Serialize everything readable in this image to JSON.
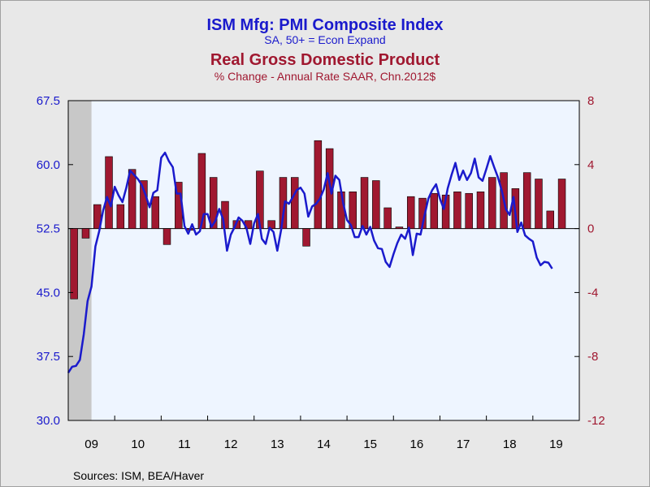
{
  "chart_data": {
    "type": "bar+line",
    "titles": [
      {
        "text": "ISM Mfg: PMI Composite Index",
        "color": "#1a1acc"
      },
      {
        "text": "Real Gross Domestic Product",
        "color": "#a01830"
      }
    ],
    "subtitles": [
      {
        "text": "SA, 50+ = Econ Expand",
        "color": "#1a1acc"
      },
      {
        "text": "% Change - Annual Rate     SAAR, Chn.2012$",
        "color": "#a01830"
      }
    ],
    "source": "Sources:  ISM, BEA/Haver",
    "x_labels": [
      "09",
      "10",
      "11",
      "12",
      "13",
      "14",
      "15",
      "16",
      "17",
      "18",
      "19"
    ],
    "x_range": [
      2009,
      2020
    ],
    "y_left": {
      "ylim": [
        30.0,
        67.5
      ],
      "ticks": [
        "30.0",
        "37.5",
        "45.0",
        "52.5",
        "60.0",
        "67.5"
      ],
      "color": "#1a1acc"
    },
    "y_right": {
      "ylim": [
        -12,
        8
      ],
      "ticks": [
        "-12",
        "-8",
        "-4",
        "0",
        "4",
        "8"
      ],
      "color": "#a01830"
    },
    "recession": [
      2009.0,
      2009.5
    ],
    "bar_color": "#a01830",
    "line_color": "#1a1acc",
    "plot_bg": "#eef5ff",
    "recession_color": "#c8c8c8",
    "series": [
      {
        "name": "Real Gross Domestic Product",
        "axis": "right",
        "type": "bar",
        "x": [
          "2009Q1",
          "2009Q2",
          "2009Q3",
          "2009Q4",
          "2010Q1",
          "2010Q2",
          "2010Q3",
          "2010Q4",
          "2011Q1",
          "2011Q2",
          "2011Q3",
          "2011Q4",
          "2012Q1",
          "2012Q2",
          "2012Q3",
          "2012Q4",
          "2013Q1",
          "2013Q2",
          "2013Q3",
          "2013Q4",
          "2014Q1",
          "2014Q2",
          "2014Q3",
          "2014Q4",
          "2015Q1",
          "2015Q2",
          "2015Q3",
          "2015Q4",
          "2016Q1",
          "2016Q2",
          "2016Q3",
          "2016Q4",
          "2017Q1",
          "2017Q2",
          "2017Q3",
          "2017Q4",
          "2018Q1",
          "2018Q2",
          "2018Q3",
          "2018Q4",
          "2019Q1",
          "2019Q2",
          "2019Q3"
        ],
        "values": [
          -4.4,
          -0.6,
          1.5,
          4.5,
          1.5,
          3.7,
          3.0,
          2.0,
          -1.0,
          2.9,
          -0.1,
          4.7,
          3.2,
          1.7,
          0.5,
          0.5,
          3.6,
          0.5,
          3.2,
          3.2,
          -1.1,
          5.5,
          5.0,
          2.3,
          2.3,
          3.2,
          3.0,
          1.3,
          0.1,
          2.0,
          1.9,
          2.2,
          2.1,
          2.3,
          2.2,
          2.3,
          3.2,
          3.5,
          2.5,
          3.5,
          3.1,
          1.1,
          3.1
        ]
      },
      {
        "name": "ISM Mfg: PMI Composite Index",
        "axis": "left",
        "type": "line",
        "start": "2009-01",
        "values": [
          35.6,
          36.3,
          36.4,
          37.1,
          40.1,
          44.0,
          45.7,
          50.4,
          52.2,
          54.6,
          56.2,
          55.1,
          57.4,
          56.4,
          55.6,
          57.3,
          59.3,
          58.8,
          58.3,
          57.6,
          56.4,
          55.0,
          56.7,
          57.0,
          60.8,
          61.4,
          60.4,
          59.7,
          56.6,
          56.6,
          52.8,
          51.9,
          53.0,
          51.8,
          52.2,
          54.2,
          54.2,
          52.7,
          53.4,
          54.8,
          53.6,
          49.9,
          51.8,
          52.7,
          53.8,
          53.4,
          52.6,
          50.7,
          53.1,
          54.2,
          51.3,
          50.7,
          52.6,
          52.1,
          49.9,
          52.4,
          55.7,
          55.4,
          56.2,
          57.0,
          57.3,
          56.6,
          53.9,
          55.1,
          55.4,
          56.0,
          57.1,
          59.0,
          56.6,
          58.7,
          58.2,
          55.5,
          53.5,
          52.9,
          51.5,
          51.5,
          52.8,
          51.8,
          52.7,
          51.1,
          50.2,
          50.1,
          48.6,
          48.0,
          49.5,
          50.8,
          51.8,
          51.3,
          52.6,
          49.4,
          51.9,
          51.8,
          54.0,
          56.0,
          57.0,
          57.7,
          56.0,
          54.8,
          57.2,
          58.8,
          60.2,
          58.2,
          59.3,
          58.2,
          59.0,
          60.7,
          58.5,
          58.1,
          59.5,
          61.0,
          59.7,
          58.5,
          56.9,
          54.8,
          54.1,
          56.2,
          52.1,
          53.2,
          51.7,
          51.3,
          51.0,
          49.1,
          48.2,
          48.6,
          48.5,
          47.8
        ]
      }
    ]
  }
}
